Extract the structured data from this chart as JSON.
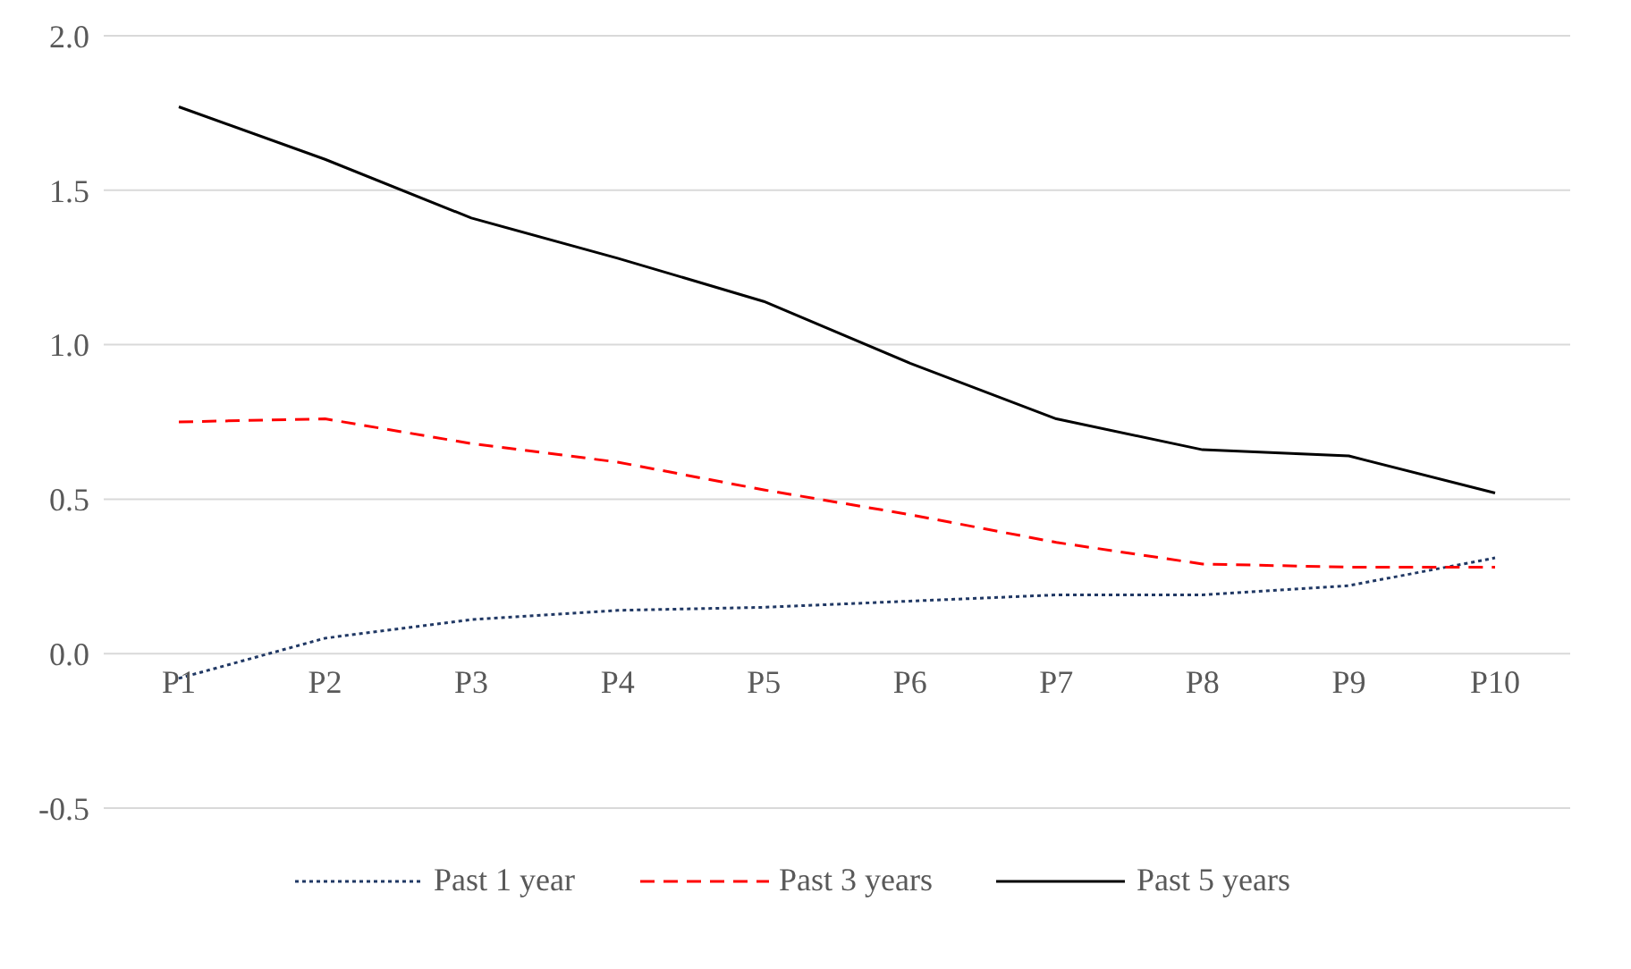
{
  "chart_data": {
    "type": "line",
    "categories": [
      "P1",
      "P2",
      "P3",
      "P4",
      "P5",
      "P6",
      "P7",
      "P8",
      "P9",
      "P10"
    ],
    "series": [
      {
        "name": "Past 1 year",
        "color": "#203864",
        "line_style": "dotted",
        "values": [
          -0.08,
          0.05,
          0.11,
          0.14,
          0.15,
          0.17,
          0.19,
          0.19,
          0.22,
          0.31
        ]
      },
      {
        "name": "Past 3 years",
        "color": "#ff0000",
        "line_style": "dashed",
        "values": [
          0.75,
          0.76,
          0.68,
          0.62,
          0.53,
          0.45,
          0.36,
          0.29,
          0.28,
          0.28
        ]
      },
      {
        "name": "Past 5 years",
        "color": "#000000",
        "line_style": "solid",
        "values": [
          1.77,
          1.6,
          1.41,
          1.28,
          1.14,
          0.94,
          0.76,
          0.66,
          0.64,
          0.52
        ]
      }
    ],
    "ylim": [
      -0.5,
      2.0
    ],
    "yticks": [
      {
        "value": -0.5,
        "label": "-0.5"
      },
      {
        "value": 0,
        "label": "0.0"
      },
      {
        "value": 0.5,
        "label": "0.5"
      },
      {
        "value": 1,
        "label": "1.0"
      },
      {
        "value": 1.5,
        "label": "1.5"
      },
      {
        "value": 2,
        "label": "2.0"
      }
    ],
    "grid": "y",
    "legend": "bottom",
    "marker": "none"
  }
}
